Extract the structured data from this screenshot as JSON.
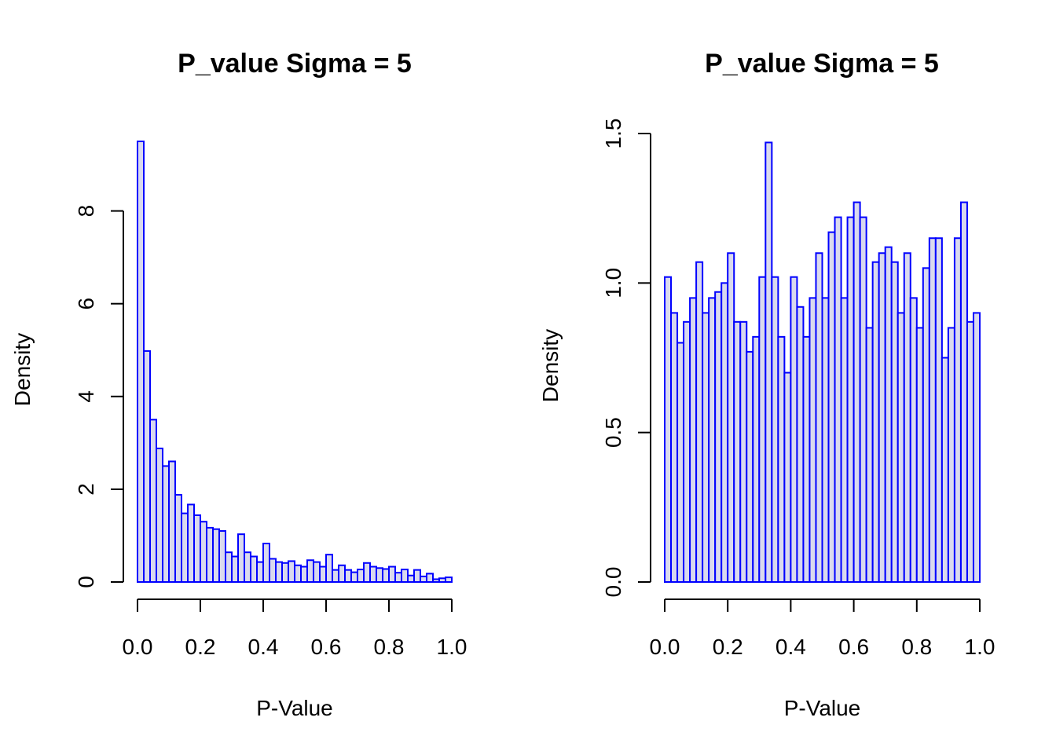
{
  "chart_data": [
    {
      "type": "bar",
      "title": "P_value Sigma = 5",
      "xlabel": "P-Value",
      "ylabel": "Density",
      "xlim": [
        0,
        1
      ],
      "ylim": [
        0,
        9.5
      ],
      "xticks": [
        0.0,
        0.2,
        0.4,
        0.6,
        0.8,
        1.0
      ],
      "xtick_labels": [
        "0.0",
        "0.2",
        "0.4",
        "0.6",
        "0.8",
        "1.0"
      ],
      "yticks": [
        0,
        2,
        4,
        6,
        8
      ],
      "ytick_labels": [
        "0",
        "2",
        "4",
        "6",
        "8"
      ],
      "bin_width": 0.02,
      "bar_fill": "#d9d9ee",
      "bar_edge": "#0000ff",
      "values": [
        9.5,
        4.98,
        3.5,
        2.88,
        2.5,
        2.6,
        1.88,
        1.48,
        1.67,
        1.44,
        1.3,
        1.17,
        1.14,
        1.1,
        0.64,
        0.55,
        1.03,
        0.64,
        0.55,
        0.43,
        0.83,
        0.5,
        0.43,
        0.41,
        0.45,
        0.36,
        0.33,
        0.47,
        0.43,
        0.33,
        0.59,
        0.26,
        0.36,
        0.26,
        0.21,
        0.27,
        0.41,
        0.33,
        0.3,
        0.28,
        0.33,
        0.2,
        0.27,
        0.14,
        0.26,
        0.12,
        0.18,
        0.06,
        0.08,
        0.1
      ]
    },
    {
      "type": "bar",
      "title": "P_value Sigma = 5",
      "xlabel": "P-Value",
      "ylabel": "Density",
      "xlim": [
        0,
        1
      ],
      "ylim": [
        0,
        1.5
      ],
      "xticks": [
        0.0,
        0.2,
        0.4,
        0.6,
        0.8,
        1.0
      ],
      "xtick_labels": [
        "0.0",
        "0.2",
        "0.4",
        "0.6",
        "0.8",
        "1.0"
      ],
      "yticks": [
        0.0,
        0.5,
        1.0,
        1.5
      ],
      "ytick_labels": [
        "0.0",
        "0.5",
        "1.0",
        "1.5"
      ],
      "bin_width": 0.02,
      "bar_fill": "#d9d9ee",
      "bar_edge": "#0000ff",
      "values": [
        1.02,
        0.9,
        0.8,
        0.87,
        0.95,
        1.07,
        0.9,
        0.95,
        0.97,
        1.0,
        1.1,
        0.87,
        0.87,
        0.77,
        0.82,
        1.02,
        1.47,
        1.02,
        0.82,
        0.7,
        1.02,
        0.92,
        0.82,
        0.95,
        1.1,
        0.95,
        1.17,
        1.22,
        0.95,
        1.22,
        1.27,
        1.22,
        0.85,
        1.07,
        1.1,
        1.12,
        1.07,
        0.9,
        1.1,
        0.95,
        0.85,
        1.05,
        1.15,
        1.15,
        0.75,
        0.85,
        1.15,
        1.27,
        0.87,
        0.9
      ]
    }
  ]
}
